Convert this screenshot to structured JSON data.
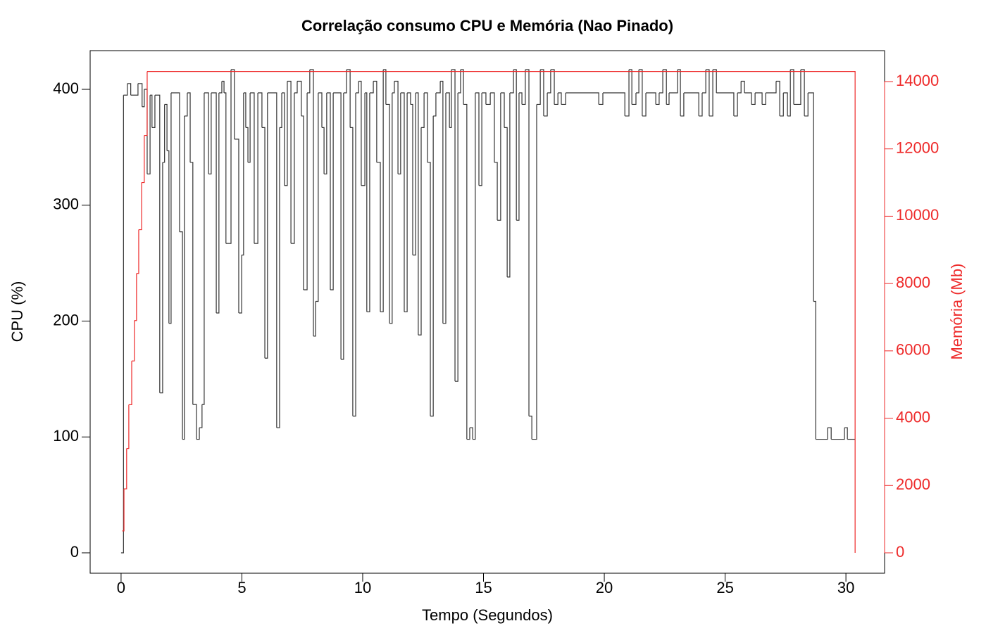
{
  "chart_data": {
    "type": "step",
    "title": "Correlação consumo CPU e Memória (Nao Pinado)",
    "x_label": "Tempo (Segundos)",
    "y_label": "CPU (%)",
    "y2_label": "Memória (Mb)",
    "xlim": [
      -1.28,
      31.6
    ],
    "xticks": [
      0,
      5,
      10,
      15,
      20,
      25,
      30
    ],
    "ylim": [
      -17.6,
      433.4
    ],
    "yticks": [
      0,
      100,
      200,
      300,
      400
    ],
    "y2lim": [
      -606,
      14919
    ],
    "y2ticks": [
      0,
      2000,
      4000,
      6000,
      8000,
      10000,
      12000,
      14000
    ],
    "grid": false,
    "series": [
      {
        "name": "CPU",
        "color": "#333333",
        "x": [
          0.0,
          0.1,
          0.26,
          0.4,
          0.7,
          0.87,
          0.96,
          1.08,
          1.2,
          1.28,
          1.4,
          1.6,
          1.72,
          1.8,
          1.9,
          1.98,
          2.07,
          2.42,
          2.54,
          2.62,
          2.74,
          2.86,
          2.97,
          3.12,
          3.24,
          3.35,
          3.44,
          3.62,
          3.73,
          3.94,
          4.05,
          4.17,
          4.26,
          4.34,
          4.55,
          4.69,
          4.87,
          4.99,
          5.07,
          5.16,
          5.25,
          5.34,
          5.51,
          5.66,
          5.83,
          5.95,
          6.06,
          6.44,
          6.56,
          6.65,
          6.76,
          6.88,
          7.03,
          7.17,
          7.29,
          7.46,
          7.55,
          7.7,
          7.81,
          7.96,
          8.05,
          8.16,
          8.31,
          8.4,
          8.51,
          8.66,
          8.78,
          9.1,
          9.21,
          9.33,
          9.48,
          9.59,
          9.71,
          9.83,
          9.94,
          10.09,
          10.17,
          10.29,
          10.44,
          10.58,
          10.73,
          10.85,
          10.96,
          11.11,
          11.22,
          11.31,
          11.46,
          11.57,
          11.72,
          11.84,
          11.98,
          12.07,
          12.19,
          12.3,
          12.42,
          12.54,
          12.68,
          12.8,
          12.92,
          13.03,
          13.21,
          13.32,
          13.44,
          13.59,
          13.67,
          13.82,
          13.94,
          14.05,
          14.17,
          14.31,
          14.43,
          14.55,
          14.66,
          14.81,
          14.93,
          15.1,
          15.28,
          15.45,
          15.57,
          15.71,
          15.86,
          15.98,
          16.09,
          16.24,
          16.36,
          16.47,
          16.59,
          16.73,
          16.88,
          17.0,
          17.2,
          17.35,
          17.49,
          17.64,
          17.78,
          17.93,
          18.08,
          18.22,
          18.4,
          19.77,
          19.94,
          20.85,
          21.02,
          21.14,
          21.31,
          21.43,
          21.57,
          21.72,
          22.13,
          22.27,
          22.42,
          22.57,
          22.68,
          23.03,
          23.15,
          23.29,
          23.91,
          24.05,
          24.2,
          24.34,
          24.49,
          24.64,
          25.36,
          25.51,
          25.66,
          25.8,
          26.09,
          26.24,
          26.53,
          26.68,
          27.11,
          27.26,
          27.41,
          27.58,
          27.7,
          27.84,
          28.13,
          28.28,
          28.43,
          28.66,
          28.75,
          29.24,
          29.39,
          29.94,
          30.06,
          30.38
        ],
        "values": [
          0,
          395,
          405,
          395,
          405,
          385,
          400,
          327,
          395,
          367,
          395,
          138,
          337,
          387,
          347,
          198,
          397,
          277,
          98,
          377,
          397,
          337,
          128,
          98,
          108,
          128,
          397,
          327,
          397,
          207,
          397,
          407,
          397,
          267,
          417,
          357,
          207,
          257,
          397,
          367,
          337,
          397,
          267,
          397,
          367,
          168,
          397,
          108,
          367,
          397,
          317,
          407,
          267,
          397,
          407,
          377,
          227,
          397,
          417,
          187,
          217,
          397,
          367,
          327,
          397,
          227,
          397,
          167,
          397,
          417,
          367,
          118,
          397,
          407,
          317,
          397,
          208,
          397,
          407,
          337,
          208,
          417,
          387,
          198,
          397,
          407,
          327,
          397,
          208,
          397,
          387,
          257,
          397,
          188,
          367,
          397,
          337,
          118,
          377,
          397,
          407,
          198,
          397,
          367,
          417,
          148,
          397,
          417,
          387,
          98,
          108,
          98,
          397,
          317,
          397,
          387,
          397,
          337,
          287,
          397,
          367,
          238,
          397,
          417,
          287,
          397,
          387,
          417,
          118,
          98,
          387,
          417,
          377,
          397,
          417,
          387,
          397,
          387,
          397,
          387,
          397,
          377,
          417,
          387,
          397,
          417,
          377,
          397,
          387,
          397,
          417,
          387,
          397,
          417,
          377,
          397,
          377,
          397,
          417,
          377,
          417,
          397,
          377,
          397,
          407,
          397,
          387,
          397,
          387,
          397,
          407,
          377,
          397,
          377,
          417,
          387,
          417,
          377,
          397,
          217,
          98,
          108,
          98,
          108,
          98,
          98
        ]
      },
      {
        "name": "Memória",
        "color": "#ee2a2a",
        "axis": "y2",
        "x": [
          0.05,
          0.12,
          0.23,
          0.32,
          0.44,
          0.55,
          0.64,
          0.73,
          0.85,
          0.96,
          1.08,
          30.38
        ],
        "values": [
          650,
          1900,
          3100,
          4400,
          5700,
          6900,
          8300,
          9600,
          11000,
          12400,
          14300,
          0
        ]
      }
    ]
  }
}
